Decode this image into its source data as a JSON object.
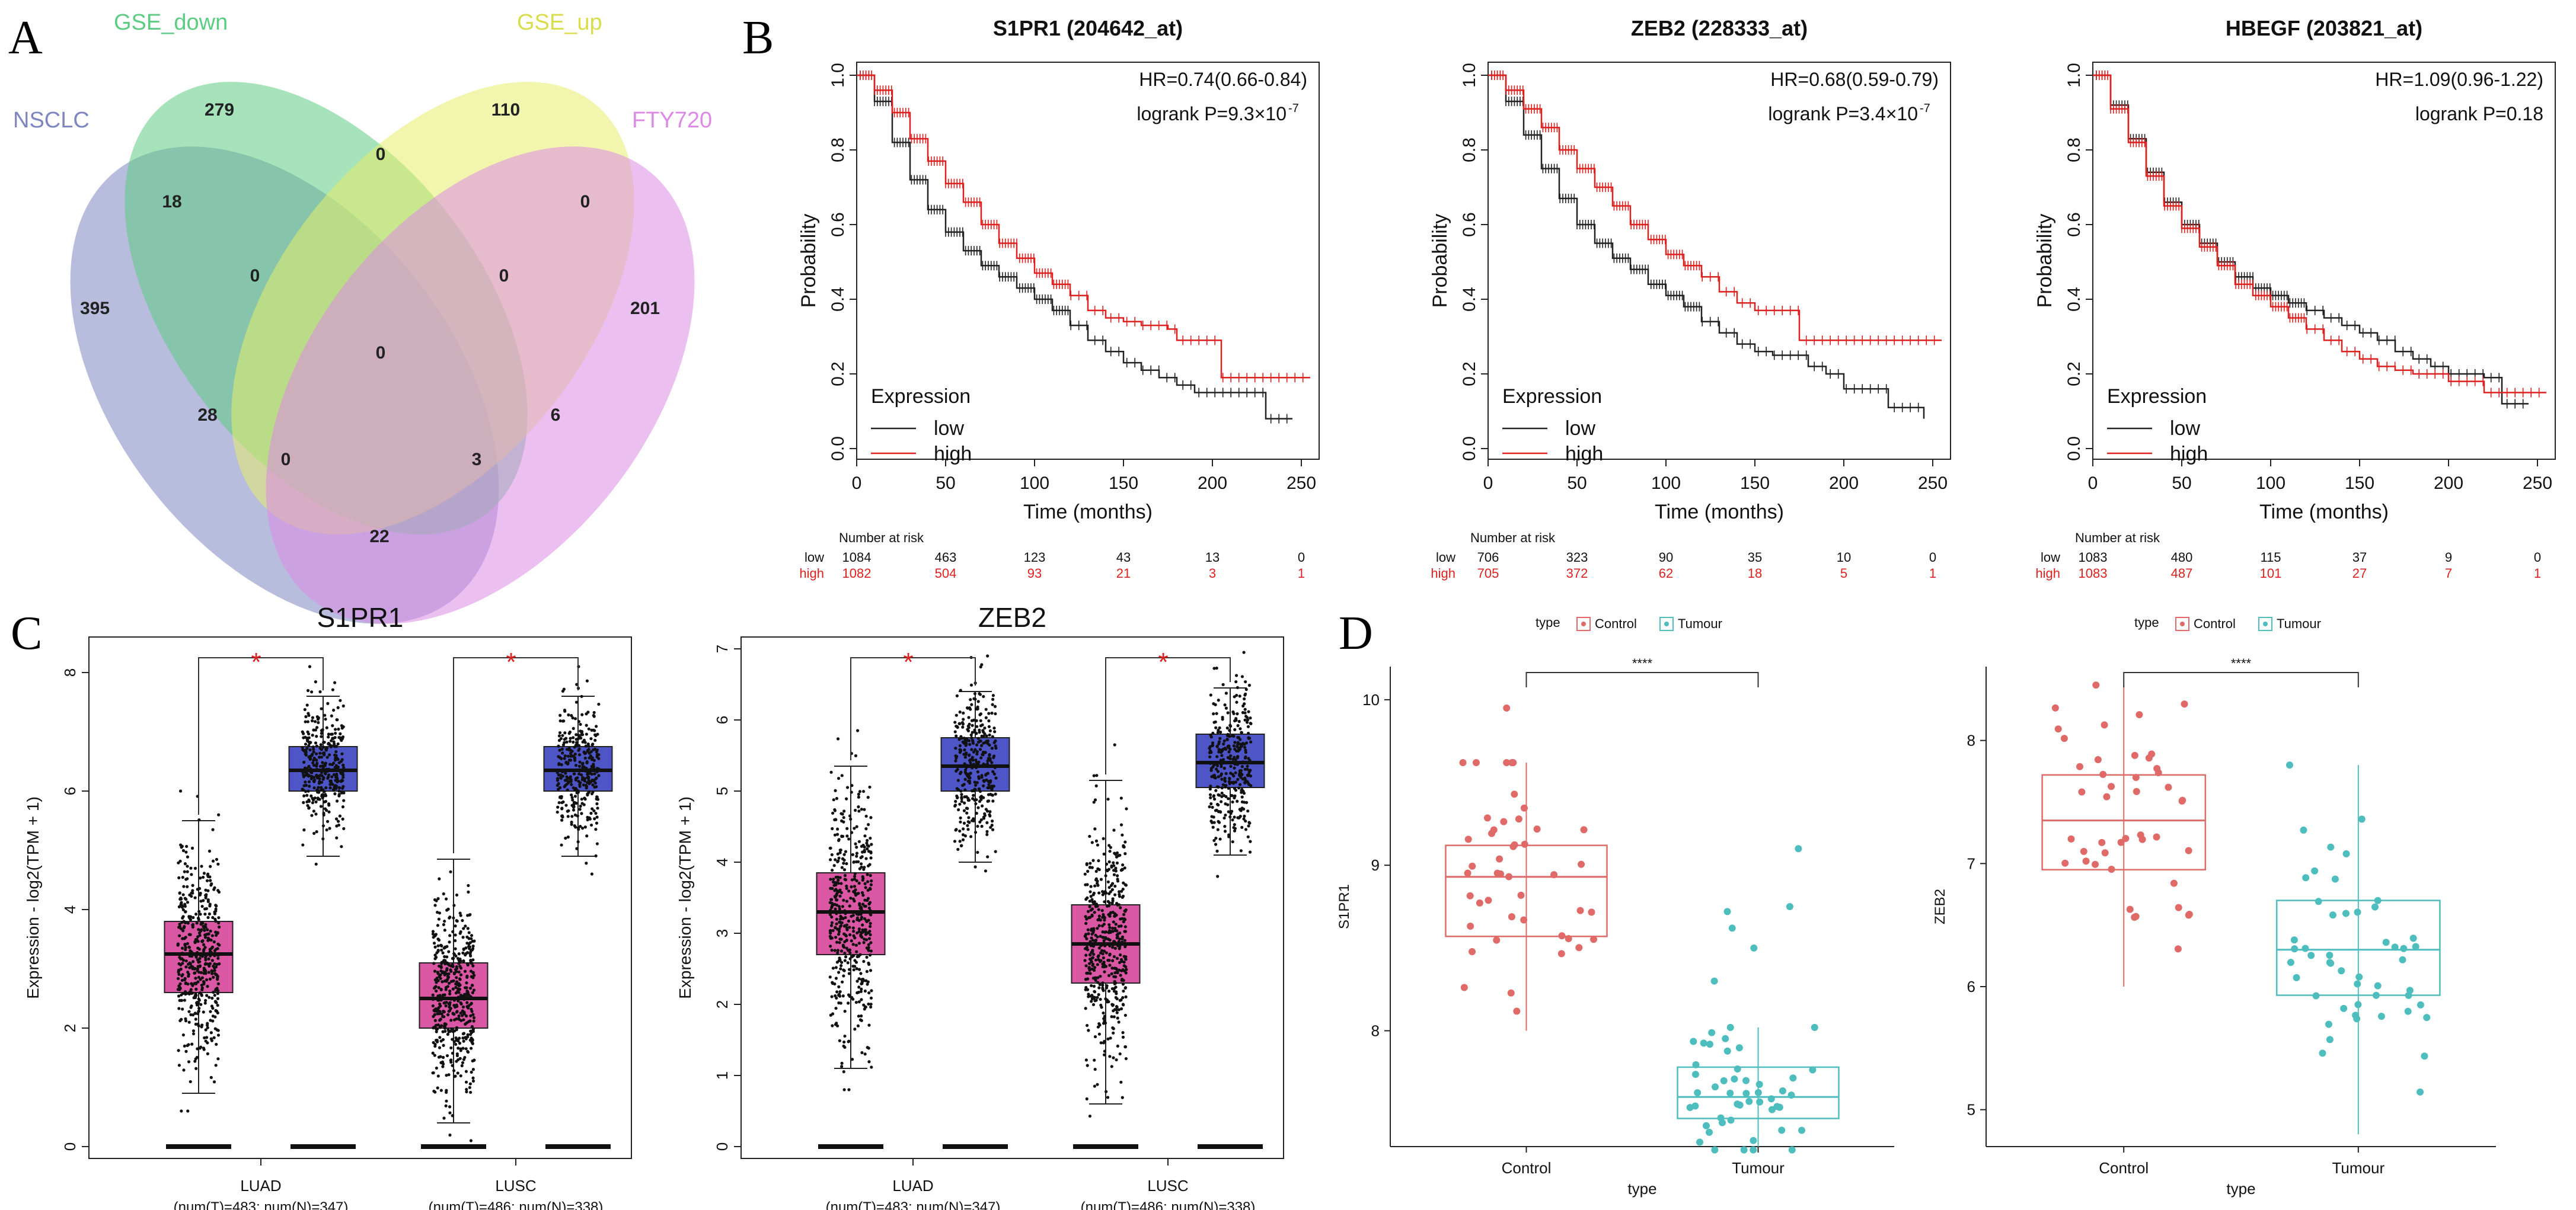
{
  "panel_labels": [
    "A",
    "B",
    "C",
    "D"
  ],
  "chart_data": [
    {
      "id": "venn",
      "type": "venn",
      "sets": [
        {
          "name": "NSCLC",
          "color": "#7e86c2"
        },
        {
          "name": "GSE_down",
          "color": "#5dcc83"
        },
        {
          "name": "GSE_up",
          "color": "#e6ec6a"
        },
        {
          "name": "FTY720",
          "color": "#dd8ae6"
        }
      ],
      "regions": [
        {
          "key": "N",
          "value": "395"
        },
        {
          "key": "D",
          "value": "279"
        },
        {
          "key": "U",
          "value": "110"
        },
        {
          "key": "F",
          "value": "201"
        },
        {
          "key": "ND",
          "value": "18"
        },
        {
          "key": "DU",
          "value": "0"
        },
        {
          "key": "UF",
          "value": "0"
        },
        {
          "key": "NU",
          "value": "28"
        },
        {
          "key": "DF",
          "value": "6"
        },
        {
          "key": "NF",
          "value": "22"
        },
        {
          "key": "NDU",
          "value": "0"
        },
        {
          "key": "DUF",
          "value": "0"
        },
        {
          "key": "NDF",
          "value": "3"
        },
        {
          "key": "NUF",
          "value": "0"
        },
        {
          "key": "NDUF",
          "value": "0"
        }
      ]
    },
    {
      "id": "km",
      "type": "kaplan-meier",
      "xlabel": "Time (months)",
      "ylabel": "Probability",
      "xticks": [
        "0",
        "50",
        "100",
        "150",
        "200",
        "250"
      ],
      "yticks": [
        "0.0",
        "0.2",
        "0.4",
        "0.6",
        "0.8",
        "1.0"
      ],
      "xlim": [
        0,
        260
      ],
      "ylim": [
        0,
        1
      ],
      "legend_title": "Expression",
      "legend": [
        "low",
        "high"
      ],
      "risk_header": "Number at risk",
      "risk_times": [
        0,
        50,
        100,
        150,
        200,
        250
      ],
      "colors": {
        "low": "#222222",
        "high": "#e01f1f"
      },
      "plots": [
        {
          "title": "S1PR1 (204642_at)",
          "hr": "HR=0.74(0.66-0.84)",
          "logrank": "logrank P=9.3×10",
          "exp": "-7",
          "low": [
            [
              0,
              1
            ],
            [
              10,
              0.93
            ],
            [
              20,
              0.82
            ],
            [
              30,
              0.72
            ],
            [
              40,
              0.64
            ],
            [
              50,
              0.58
            ],
            [
              60,
              0.53
            ],
            [
              70,
              0.49
            ],
            [
              80,
              0.46
            ],
            [
              90,
              0.43
            ],
            [
              100,
              0.4
            ],
            [
              110,
              0.37
            ],
            [
              120,
              0.33
            ],
            [
              130,
              0.29
            ],
            [
              140,
              0.26
            ],
            [
              150,
              0.23
            ],
            [
              160,
              0.21
            ],
            [
              170,
              0.19
            ],
            [
              180,
              0.17
            ],
            [
              190,
              0.15
            ],
            [
              200,
              0.15
            ],
            [
              230,
              0.15
            ],
            [
              230,
              0.08
            ],
            [
              245,
              0.08
            ]
          ],
          "high": [
            [
              0,
              1
            ],
            [
              10,
              0.96
            ],
            [
              20,
              0.9
            ],
            [
              30,
              0.83
            ],
            [
              40,
              0.77
            ],
            [
              50,
              0.71
            ],
            [
              60,
              0.66
            ],
            [
              70,
              0.6
            ],
            [
              80,
              0.55
            ],
            [
              90,
              0.51
            ],
            [
              100,
              0.47
            ],
            [
              110,
              0.44
            ],
            [
              120,
              0.41
            ],
            [
              130,
              0.37
            ],
            [
              140,
              0.35
            ],
            [
              150,
              0.34
            ],
            [
              160,
              0.33
            ],
            [
              170,
              0.33
            ],
            [
              175,
              0.32
            ],
            [
              180,
              0.29
            ],
            [
              205,
              0.29
            ],
            [
              205,
              0.19
            ],
            [
              255,
              0.19
            ]
          ],
          "risk": {
            "low": [
              "1084",
              "463",
              "123",
              "43",
              "13",
              "0"
            ],
            "high": [
              "1082",
              "504",
              "93",
              "21",
              "3",
              "1"
            ]
          }
        },
        {
          "title": "ZEB2 (228333_at)",
          "hr": "HR=0.68(0.59-0.79)",
          "logrank": "logrank P=3.4×10",
          "exp": "-7",
          "low": [
            [
              0,
              1
            ],
            [
              10,
              0.93
            ],
            [
              20,
              0.84
            ],
            [
              30,
              0.75
            ],
            [
              40,
              0.67
            ],
            [
              50,
              0.6
            ],
            [
              60,
              0.55
            ],
            [
              70,
              0.51
            ],
            [
              80,
              0.48
            ],
            [
              90,
              0.44
            ],
            [
              100,
              0.41
            ],
            [
              110,
              0.38
            ],
            [
              120,
              0.34
            ],
            [
              130,
              0.31
            ],
            [
              140,
              0.28
            ],
            [
              150,
              0.26
            ],
            [
              160,
              0.25
            ],
            [
              170,
              0.25
            ],
            [
              180,
              0.22
            ],
            [
              190,
              0.2
            ],
            [
              200,
              0.16
            ],
            [
              225,
              0.16
            ],
            [
              225,
              0.11
            ],
            [
              245,
              0.08
            ]
          ],
          "high": [
            [
              0,
              1
            ],
            [
              10,
              0.96
            ],
            [
              20,
              0.91
            ],
            [
              30,
              0.86
            ],
            [
              40,
              0.8
            ],
            [
              50,
              0.75
            ],
            [
              60,
              0.7
            ],
            [
              70,
              0.65
            ],
            [
              80,
              0.6
            ],
            [
              90,
              0.56
            ],
            [
              100,
              0.52
            ],
            [
              110,
              0.49
            ],
            [
              120,
              0.46
            ],
            [
              130,
              0.42
            ],
            [
              140,
              0.39
            ],
            [
              150,
              0.37
            ],
            [
              160,
              0.37
            ],
            [
              175,
              0.36
            ],
            [
              175,
              0.29
            ],
            [
              255,
              0.29
            ]
          ],
          "risk": {
            "low": [
              "706",
              "323",
              "90",
              "35",
              "10",
              "0"
            ],
            "high": [
              "705",
              "372",
              "62",
              "18",
              "5",
              "1"
            ]
          }
        },
        {
          "title": "HBEGF (203821_at)",
          "hr": "HR=1.09(0.96-1.22)",
          "logrank": "logrank P=0.18",
          "exp": "",
          "low": [
            [
              0,
              1
            ],
            [
              10,
              0.92
            ],
            [
              20,
              0.83
            ],
            [
              30,
              0.74
            ],
            [
              40,
              0.66
            ],
            [
              50,
              0.6
            ],
            [
              60,
              0.55
            ],
            [
              70,
              0.5
            ],
            [
              80,
              0.46
            ],
            [
              90,
              0.43
            ],
            [
              100,
              0.41
            ],
            [
              110,
              0.39
            ],
            [
              120,
              0.37
            ],
            [
              130,
              0.35
            ],
            [
              140,
              0.33
            ],
            [
              150,
              0.31
            ],
            [
              160,
              0.29
            ],
            [
              170,
              0.26
            ],
            [
              180,
              0.24
            ],
            [
              190,
              0.22
            ],
            [
              200,
              0.2
            ],
            [
              220,
              0.19
            ],
            [
              230,
              0.12
            ],
            [
              245,
              0.12
            ]
          ],
          "high": [
            [
              0,
              1
            ],
            [
              10,
              0.91
            ],
            [
              20,
              0.82
            ],
            [
              30,
              0.73
            ],
            [
              40,
              0.65
            ],
            [
              50,
              0.59
            ],
            [
              60,
              0.54
            ],
            [
              70,
              0.49
            ],
            [
              80,
              0.44
            ],
            [
              90,
              0.41
            ],
            [
              100,
              0.38
            ],
            [
              110,
              0.35
            ],
            [
              120,
              0.32
            ],
            [
              130,
              0.29
            ],
            [
              140,
              0.26
            ],
            [
              150,
              0.24
            ],
            [
              160,
              0.22
            ],
            [
              170,
              0.21
            ],
            [
              180,
              0.2
            ],
            [
              200,
              0.18
            ],
            [
              210,
              0.18
            ],
            [
              220,
              0.15
            ],
            [
              255,
              0.15
            ]
          ],
          "risk": {
            "low": [
              "1083",
              "480",
              "115",
              "37",
              "9",
              "0"
            ],
            "high": [
              "1083",
              "487",
              "101",
              "27",
              "7",
              "1"
            ]
          }
        }
      ]
    },
    {
      "id": "gepia",
      "type": "boxplot",
      "ylabel": "Expression - log2(TPM + 1)",
      "xcats": [
        {
          "name": "LUAD",
          "n": "(num(T)=483; num(N)=347)"
        },
        {
          "name": "LUSC",
          "n": "(num(T)=486; num(N)=338)"
        }
      ],
      "colors": {
        "tumor": "#d957a3",
        "normal": "#4e55c7"
      },
      "sig": "*",
      "plots": [
        {
          "title": "S1PR1",
          "ylim": [
            0,
            8.4
          ],
          "yticks": [
            0,
            2,
            4,
            6,
            8
          ],
          "boxes": [
            {
              "group": "tumor",
              "cat": 0,
              "q1": 2.6,
              "med": 3.25,
              "q3": 3.8,
              "lo": 0.9,
              "hi": 5.5,
              "n": 483
            },
            {
              "group": "normal",
              "cat": 0,
              "q1": 6.0,
              "med": 6.35,
              "q3": 6.75,
              "lo": 4.9,
              "hi": 7.6,
              "n": 347
            },
            {
              "group": "tumor",
              "cat": 1,
              "q1": 2.0,
              "med": 2.5,
              "q3": 3.1,
              "lo": 0.4,
              "hi": 4.85,
              "n": 486
            },
            {
              "group": "normal",
              "cat": 1,
              "q1": 6.0,
              "med": 6.35,
              "q3": 6.75,
              "lo": 4.9,
              "hi": 7.6,
              "n": 338
            }
          ]
        },
        {
          "title": "ZEB2",
          "ylim": [
            0,
            7
          ],
          "yticks": [
            0,
            1,
            2,
            3,
            4,
            5,
            6,
            7
          ],
          "boxes": [
            {
              "group": "tumor",
              "cat": 0,
              "q1": 2.7,
              "med": 3.3,
              "q3": 3.85,
              "lo": 1.1,
              "hi": 5.35,
              "n": 483
            },
            {
              "group": "normal",
              "cat": 0,
              "q1": 5.0,
              "med": 5.35,
              "q3": 5.75,
              "lo": 4.0,
              "hi": 6.4,
              "n": 347
            },
            {
              "group": "tumor",
              "cat": 1,
              "q1": 2.3,
              "med": 2.85,
              "q3": 3.4,
              "lo": 0.6,
              "hi": 5.15,
              "n": 486
            },
            {
              "group": "normal",
              "cat": 1,
              "q1": 5.05,
              "med": 5.4,
              "q3": 5.8,
              "lo": 4.1,
              "hi": 6.45,
              "n": 338
            }
          ]
        }
      ]
    },
    {
      "id": "ggplot",
      "type": "boxplot-dots",
      "legend_title": "type",
      "legend": [
        "Control",
        "Tumour"
      ],
      "colors": {
        "Control": "#e06a68",
        "Tumour": "#4dbdbd"
      },
      "xlabel": "type",
      "sig": "****",
      "plots": [
        {
          "ylabel": "S1PR1",
          "ylim": [
            7.3,
            10.2
          ],
          "yticks": [
            8,
            9,
            10
          ],
          "groups": [
            {
              "name": "Control",
              "q1": 8.57,
              "med": 8.93,
              "q3": 9.12,
              "lo": 8.0,
              "hi": 9.62,
              "n": 45,
              "ymin": 8.0,
              "ymax": 9.62,
              "extra": [
                9.95
              ]
            },
            {
              "name": "Tumour",
              "q1": 7.47,
              "med": 7.6,
              "q3": 7.78,
              "lo": 7.3,
              "hi": 8.02,
              "n": 48,
              "ymin": 7.28,
              "ymax": 8.02,
              "extra": [
                8.3,
                8.5,
                8.62,
                8.72,
                8.75,
                9.1
              ]
            }
          ]
        },
        {
          "ylabel": "ZEB2",
          "ylim": [
            4.7,
            8.6
          ],
          "yticks": [
            5,
            6,
            7,
            8
          ],
          "groups": [
            {
              "name": "Control",
              "q1": 6.95,
              "med": 7.35,
              "q3": 7.72,
              "lo": 6.0,
              "hi": 8.45,
              "n": 45,
              "ymin": 6.0,
              "ymax": 8.45,
              "extra": []
            },
            {
              "name": "Tumour",
              "q1": 5.93,
              "med": 6.3,
              "q3": 6.7,
              "lo": 4.8,
              "hi": 7.8,
              "n": 50,
              "ymin": 4.75,
              "ymax": 7.8,
              "extra": []
            }
          ]
        }
      ]
    }
  ]
}
